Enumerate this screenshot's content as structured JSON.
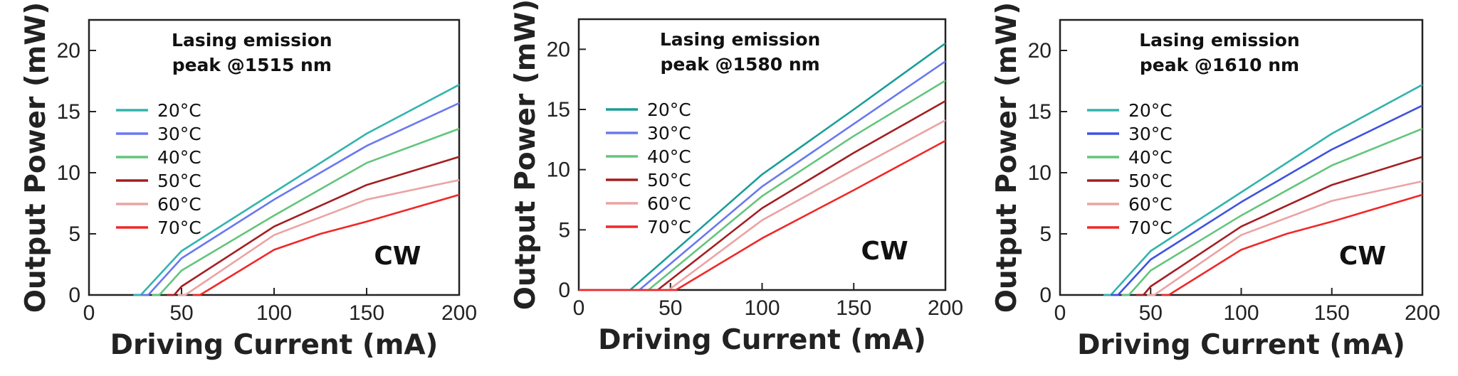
{
  "chart_data": [
    {
      "type": "line",
      "xlabel": "Driving Current (mA)",
      "ylabel": "Output Power (mW)",
      "xlim": [
        0,
        200
      ],
      "ylim": [
        0,
        22.5
      ],
      "xticks": [
        0,
        50,
        100,
        150,
        200
      ],
      "yticks": [
        0,
        5,
        10,
        15,
        20
      ],
      "annotation": [
        "Lasing emission",
        "peak @1515 nm"
      ],
      "mode_label": "CW",
      "series": [
        {
          "name": "20°C",
          "color": "#33b3ad",
          "x": [
            24,
            28,
            50,
            100,
            150,
            200
          ],
          "y": [
            0,
            0,
            3.6,
            8.4,
            13.2,
            17.2
          ]
        },
        {
          "name": "30°C",
          "color": "#6a78f0",
          "x": [
            28,
            32,
            50,
            100,
            150,
            200
          ],
          "y": [
            0,
            0,
            3.0,
            7.8,
            12.2,
            15.7
          ]
        },
        {
          "name": "40°C",
          "color": "#63c57c",
          "x": [
            34,
            38,
            50,
            100,
            150,
            200
          ],
          "y": [
            0,
            0,
            2.0,
            6.5,
            10.8,
            13.6
          ]
        },
        {
          "name": "50°C",
          "color": "#a31f22",
          "x": [
            42,
            46,
            50,
            100,
            150,
            200
          ],
          "y": [
            0,
            0,
            0.7,
            5.6,
            9.0,
            11.3
          ]
        },
        {
          "name": "60°C",
          "color": "#eba3a3",
          "x": [
            48,
            52,
            100,
            150,
            200
          ],
          "y": [
            0,
            0,
            4.9,
            7.8,
            9.4
          ]
        },
        {
          "name": "70°C",
          "color": "#f02828",
          "x": [
            56,
            60,
            100,
            125,
            150,
            200
          ],
          "y": [
            0,
            0,
            3.7,
            5.0,
            6.0,
            8.2
          ]
        }
      ]
    },
    {
      "type": "line",
      "xlabel": "Driving Current (mA)",
      "ylabel": "Output Power (mW)",
      "xlim": [
        0,
        200
      ],
      "ylim": [
        0,
        22.5
      ],
      "xticks": [
        0,
        50,
        100,
        150,
        200
      ],
      "yticks": [
        0,
        5,
        10,
        15,
        20
      ],
      "annotation": [
        "Lasing emission",
        "peak @1580 nm"
      ],
      "mode_label": "CW",
      "series": [
        {
          "name": "20°C",
          "color": "#1a9e98",
          "x": [
            0,
            25,
            28,
            100,
            150,
            200
          ],
          "y": [
            0,
            0,
            0,
            9.6,
            15.0,
            20.5
          ]
        },
        {
          "name": "30°C",
          "color": "#6a78f0",
          "x": [
            0,
            30,
            33,
            100,
            150,
            200
          ],
          "y": [
            0,
            0,
            0,
            8.6,
            13.8,
            19.0
          ]
        },
        {
          "name": "40°C",
          "color": "#63c57c",
          "x": [
            0,
            35,
            38,
            100,
            150,
            200
          ],
          "y": [
            0,
            0,
            0,
            7.8,
            12.8,
            17.4
          ]
        },
        {
          "name": "50°C",
          "color": "#a31f22",
          "x": [
            0,
            40,
            43,
            100,
            150,
            200
          ],
          "y": [
            0,
            0,
            0,
            6.8,
            11.4,
            15.7
          ]
        },
        {
          "name": "60°C",
          "color": "#eba3a3",
          "x": [
            0,
            46,
            49,
            100,
            150,
            200
          ],
          "y": [
            0,
            0,
            0,
            5.8,
            10.0,
            14.1
          ]
        },
        {
          "name": "70°C",
          "color": "#f02828",
          "x": [
            0,
            50,
            53,
            100,
            150,
            200
          ],
          "y": [
            0,
            0,
            0,
            4.3,
            8.3,
            12.4
          ]
        }
      ]
    },
    {
      "type": "line",
      "xlabel": "Driving Current (mA)",
      "ylabel": "Output Power (mW)",
      "xlim": [
        0,
        200
      ],
      "ylim": [
        0,
        22.5
      ],
      "xticks": [
        0,
        50,
        100,
        150,
        200
      ],
      "yticks": [
        0,
        5,
        10,
        15,
        20
      ],
      "annotation": [
        "Lasing emission",
        "peak @1610 nm"
      ],
      "mode_label": "CW",
      "series": [
        {
          "name": "20°C",
          "color": "#33b3ad",
          "x": [
            24,
            28,
            50,
            100,
            150,
            200
          ],
          "y": [
            0,
            0,
            3.6,
            8.4,
            13.2,
            17.2
          ]
        },
        {
          "name": "30°C",
          "color": "#3f52e0",
          "x": [
            28,
            32,
            50,
            100,
            150,
            200
          ],
          "y": [
            0,
            0,
            2.9,
            7.6,
            11.9,
            15.5
          ]
        },
        {
          "name": "40°C",
          "color": "#63c57c",
          "x": [
            34,
            38,
            50,
            100,
            150,
            200
          ],
          "y": [
            0,
            0,
            2.0,
            6.5,
            10.6,
            13.6
          ]
        },
        {
          "name": "50°C",
          "color": "#a31f22",
          "x": [
            42,
            46,
            50,
            100,
            150,
            200
          ],
          "y": [
            0,
            0,
            0.7,
            5.6,
            9.0,
            11.3
          ]
        },
        {
          "name": "60°C",
          "color": "#eba3a3",
          "x": [
            48,
            52,
            100,
            150,
            200
          ],
          "y": [
            0,
            0,
            4.9,
            7.7,
            9.3
          ]
        },
        {
          "name": "70°C",
          "color": "#f02828",
          "x": [
            56,
            60,
            100,
            125,
            150,
            200
          ],
          "y": [
            0,
            0,
            3.7,
            5.0,
            6.0,
            8.2
          ]
        }
      ]
    }
  ]
}
